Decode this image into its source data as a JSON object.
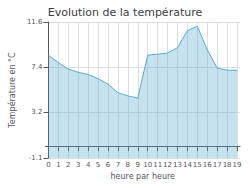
{
  "chart_data": {
    "type": "area",
    "title": "Evolution de la température",
    "xlabel": "heure par heure",
    "ylabel": "Température en °C",
    "x": [
      0,
      1,
      2,
      3,
      4,
      5,
      6,
      7,
      8,
      9,
      10,
      11,
      12,
      13,
      14,
      15,
      16,
      17,
      18,
      19
    ],
    "values": [
      8.5,
      7.8,
      7.2,
      6.9,
      6.7,
      6.3,
      5.8,
      5.0,
      4.7,
      4.5,
      8.5,
      8.6,
      8.7,
      9.2,
      10.8,
      11.2,
      9.0,
      7.3,
      7.1,
      7.1
    ],
    "xlim": [
      -0.3,
      19.3
    ],
    "ylim": [
      -1.1,
      11.6
    ],
    "xticks": [
      0,
      1,
      2,
      3,
      4,
      5,
      6,
      7,
      8,
      9,
      10,
      11,
      12,
      13,
      14,
      15,
      16,
      17,
      18,
      19
    ],
    "yticks": [
      -1.1,
      3.2,
      7.4,
      11.6
    ],
    "color": "#5aabce",
    "grid": true
  }
}
